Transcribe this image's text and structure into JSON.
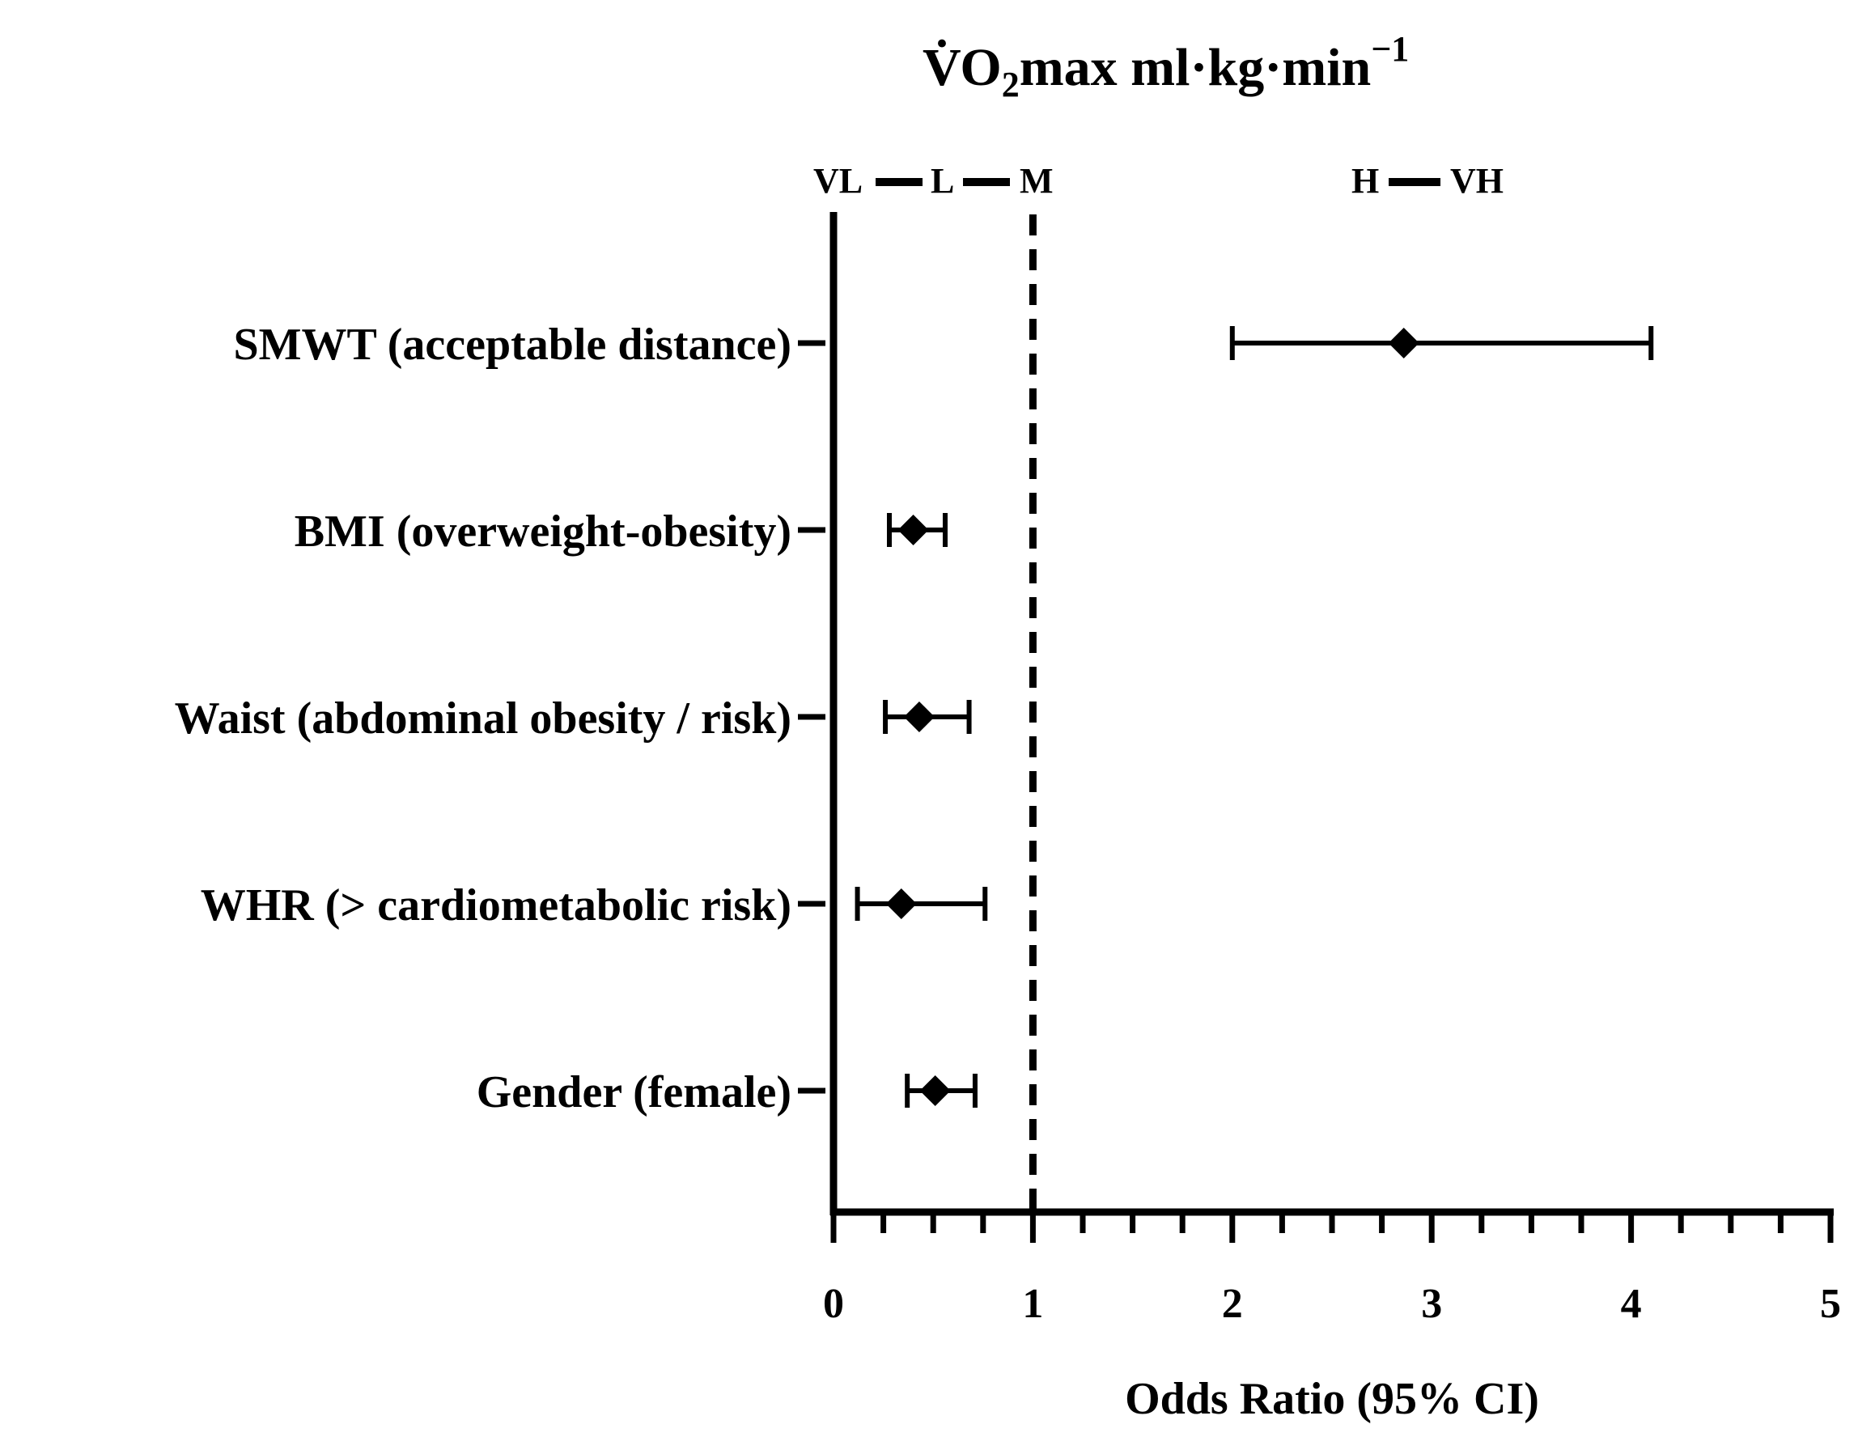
{
  "chart_data": {
    "type": "forest",
    "title": {
      "main": "V̇O",
      "sub": "2",
      "mid": "max ml·kg·min",
      "sup": "−1"
    },
    "xlabel": "Odds Ratio (95% CI)",
    "ylabel": "",
    "xlim": [
      0,
      5
    ],
    "reference_line": 1,
    "xticks": [
      {
        "value": 0,
        "label": "0"
      },
      {
        "value": 1,
        "label": "1"
      },
      {
        "value": 2,
        "label": "2"
      },
      {
        "value": 3,
        "label": "3"
      },
      {
        "value": 4,
        "label": "4"
      },
      {
        "value": 5,
        "label": "5"
      }
    ],
    "minor_tick_step": 0.25,
    "fitness_scale_legend": {
      "left_group": [
        "VL",
        "L",
        "M"
      ],
      "right_group": [
        "H",
        "VH"
      ]
    },
    "rows": [
      {
        "label": "SMWT (acceptable distance)",
        "or": 2.86,
        "ci_low": 2.0,
        "ci_high": 4.1
      },
      {
        "label": "BMI (overweight-obesity)",
        "or": 0.4,
        "ci_low": 0.28,
        "ci_high": 0.56
      },
      {
        "label": "Waist (abdominal obesity / risk)",
        "or": 0.43,
        "ci_low": 0.26,
        "ci_high": 0.68
      },
      {
        "label": "WHR  (> cardiometabolic risk)",
        "or": 0.34,
        "ci_low": 0.12,
        "ci_high": 0.76
      },
      {
        "label": "Gender (female)",
        "or": 0.51,
        "ci_low": 0.37,
        "ci_high": 0.71
      }
    ]
  }
}
